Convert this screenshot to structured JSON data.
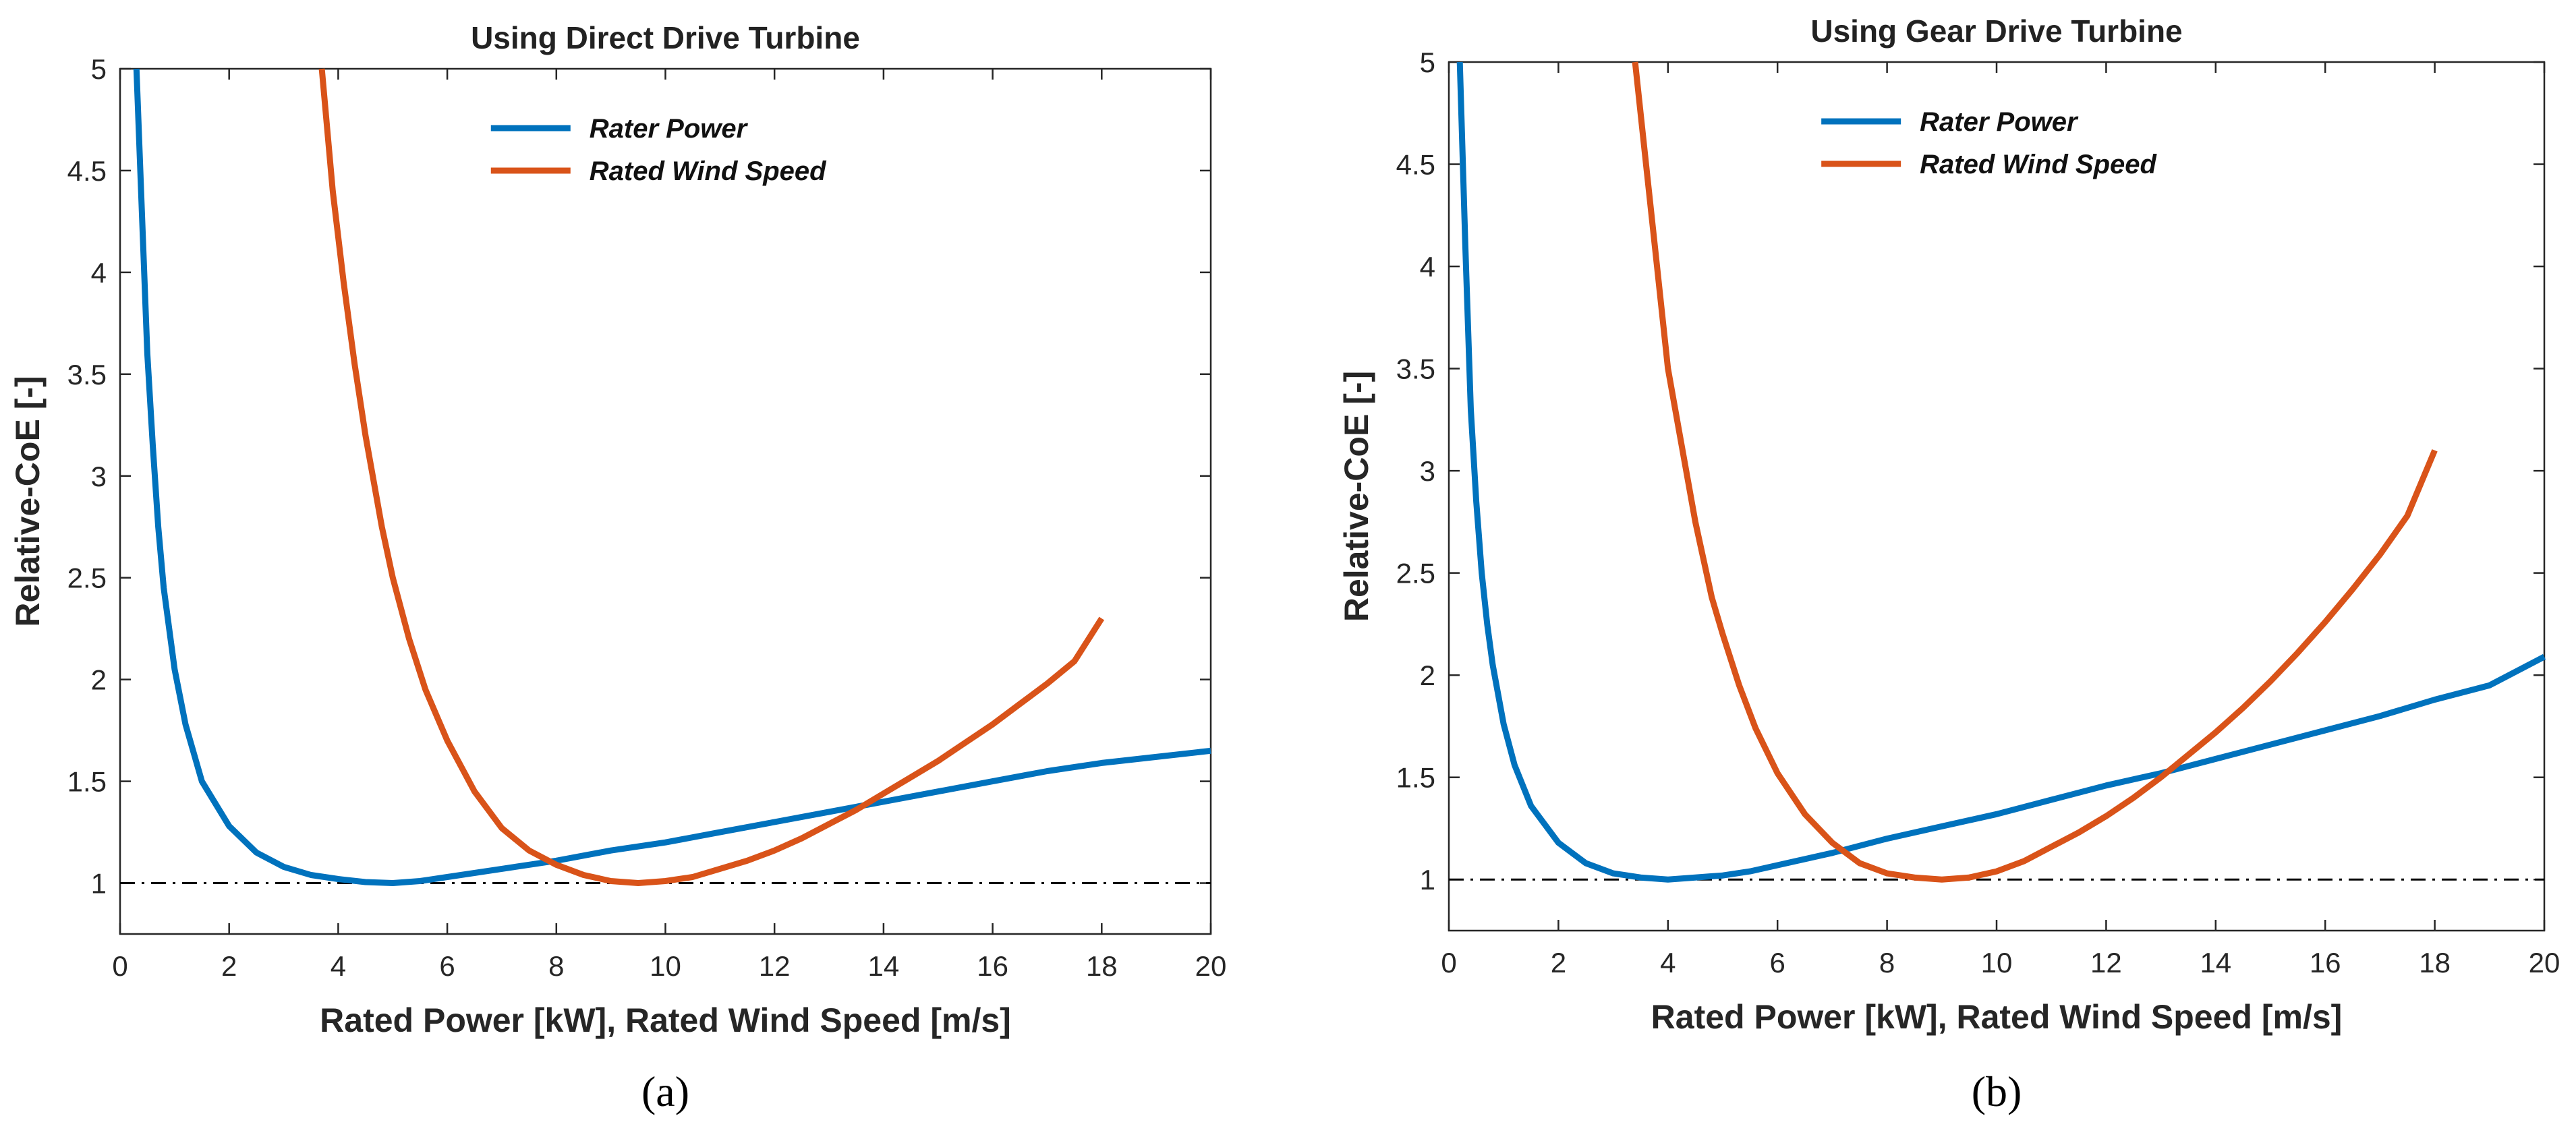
{
  "chart_data": [
    {
      "type": "line",
      "title": "Using Direct Drive Turbine",
      "caption": "(a)",
      "xlabel": "Rated Power [kW], Rated Wind Speed [m/s]",
      "ylabel": "Relative-CoE [-]",
      "xlim": [
        0,
        20
      ],
      "ylim": [
        0.75,
        5
      ],
      "xticks": [
        0,
        2,
        4,
        6,
        8,
        10,
        12,
        14,
        16,
        18,
        20
      ],
      "yticks": [
        1,
        1.5,
        2,
        2.5,
        3,
        3.5,
        4,
        4.5,
        5
      ],
      "xtick_labels": [
        "0",
        "2",
        "4",
        "6",
        "8",
        "10",
        "12",
        "14",
        "16",
        "18",
        "20"
      ],
      "ytick_labels": [
        "1",
        "1.5",
        "2",
        "2.5",
        "3",
        "3.5",
        "4",
        "4.5",
        "5"
      ],
      "reference_line": {
        "y": 1,
        "style": "dash-dot",
        "color": "#000000"
      },
      "legend_position": "top-center",
      "series": [
        {
          "name": "Rater Power",
          "color": "#0072BD",
          "x": [
            0.3,
            0.4,
            0.5,
            0.6,
            0.7,
            0.8,
            1.0,
            1.2,
            1.5,
            2.0,
            2.5,
            3.0,
            3.5,
            4.0,
            4.5,
            5.0,
            5.5,
            6.0,
            7.0,
            8.0,
            9.0,
            10.0,
            11.0,
            12.0,
            13.0,
            14.0,
            15.0,
            16.0,
            17.0,
            18.0,
            19.0,
            20.0
          ],
          "y": [
            5.0,
            4.3,
            3.6,
            3.15,
            2.75,
            2.45,
            2.05,
            1.78,
            1.5,
            1.28,
            1.15,
            1.08,
            1.04,
            1.02,
            1.005,
            1.0,
            1.01,
            1.03,
            1.07,
            1.11,
            1.16,
            1.2,
            1.25,
            1.3,
            1.35,
            1.4,
            1.45,
            1.5,
            1.55,
            1.59,
            1.62,
            1.65
          ]
        },
        {
          "name": "Rated Wind Speed",
          "color": "#D95319",
          "x": [
            3.7,
            3.9,
            4.1,
            4.3,
            4.5,
            4.8,
            5.0,
            5.3,
            5.6,
            6.0,
            6.5,
            7.0,
            7.5,
            8.0,
            8.5,
            9.0,
            9.5,
            10.0,
            10.5,
            11.0,
            11.5,
            12.0,
            12.5,
            13.0,
            13.5,
            14.0,
            14.5,
            15.0,
            15.5,
            16.0,
            16.5,
            17.0,
            17.5,
            18.0
          ],
          "y": [
            5.0,
            4.4,
            3.95,
            3.55,
            3.2,
            2.75,
            2.5,
            2.2,
            1.95,
            1.7,
            1.45,
            1.27,
            1.16,
            1.09,
            1.04,
            1.01,
            1.0,
            1.01,
            1.03,
            1.07,
            1.11,
            1.16,
            1.22,
            1.29,
            1.36,
            1.44,
            1.52,
            1.6,
            1.69,
            1.78,
            1.88,
            1.98,
            2.09,
            2.3
          ]
        }
      ]
    },
    {
      "type": "line",
      "title": "Using Gear Drive Turbine",
      "caption": "(b)",
      "xlabel": "Rated Power [kW], Rated Wind Speed [m/s]",
      "ylabel": "Relative-CoE [-]",
      "xlim": [
        0,
        20
      ],
      "ylim": [
        0.75,
        5
      ],
      "xticks": [
        0,
        2,
        4,
        6,
        8,
        10,
        12,
        14,
        16,
        18,
        20
      ],
      "yticks": [
        1,
        1.5,
        2,
        2.5,
        3,
        3.5,
        4,
        4.5,
        5
      ],
      "xtick_labels": [
        "0",
        "2",
        "4",
        "6",
        "8",
        "10",
        "12",
        "14",
        "16",
        "18",
        "20"
      ],
      "ytick_labels": [
        "1",
        "1.5",
        "2",
        "2.5",
        "3",
        "3.5",
        "4",
        "4.5",
        "5"
      ],
      "reference_line": {
        "y": 1,
        "style": "dash-dot",
        "color": "#000000"
      },
      "legend_position": "top-center",
      "series": [
        {
          "name": "Rater Power",
          "color": "#0072BD",
          "x": [
            0.2,
            0.3,
            0.4,
            0.5,
            0.6,
            0.7,
            0.8,
            1.0,
            1.2,
            1.5,
            2.0,
            2.5,
            3.0,
            3.5,
            4.0,
            4.5,
            5.0,
            5.5,
            6.0,
            7.0,
            8.0,
            9.0,
            10.0,
            11.0,
            12.0,
            13.0,
            14.0,
            15.0,
            16.0,
            17.0,
            18.0,
            19.0,
            20.0
          ],
          "y": [
            5.0,
            4.1,
            3.3,
            2.85,
            2.5,
            2.25,
            2.05,
            1.76,
            1.56,
            1.36,
            1.18,
            1.08,
            1.03,
            1.01,
            1.0,
            1.01,
            1.02,
            1.04,
            1.07,
            1.13,
            1.2,
            1.26,
            1.32,
            1.39,
            1.46,
            1.52,
            1.59,
            1.66,
            1.73,
            1.8,
            1.88,
            1.95,
            2.09
          ]
        },
        {
          "name": "Rated Wind Speed",
          "color": "#D95319",
          "x": [
            3.4,
            3.6,
            3.8,
            4.0,
            4.2,
            4.5,
            4.8,
            5.0,
            5.3,
            5.6,
            6.0,
            6.5,
            7.0,
            7.5,
            8.0,
            8.5,
            9.0,
            9.5,
            10.0,
            10.5,
            11.0,
            11.5,
            12.0,
            12.5,
            13.0,
            13.5,
            14.0,
            14.5,
            15.0,
            15.5,
            16.0,
            16.5,
            17.0,
            17.5,
            18.0
          ],
          "y": [
            5.0,
            4.5,
            4.0,
            3.5,
            3.2,
            2.75,
            2.38,
            2.2,
            1.95,
            1.74,
            1.52,
            1.32,
            1.18,
            1.08,
            1.03,
            1.01,
            1.0,
            1.01,
            1.04,
            1.09,
            1.16,
            1.23,
            1.31,
            1.4,
            1.5,
            1.61,
            1.72,
            1.84,
            1.97,
            2.11,
            2.26,
            2.42,
            2.59,
            2.78,
            3.1
          ]
        }
      ]
    }
  ]
}
